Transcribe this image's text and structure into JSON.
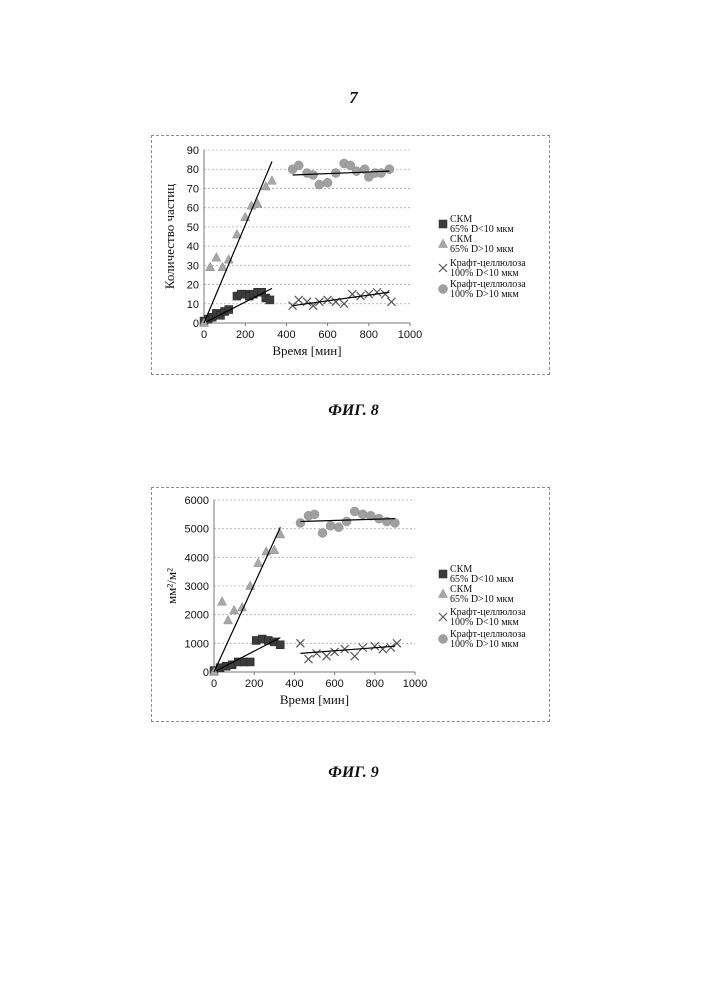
{
  "page": {
    "number": "7"
  },
  "figures": [
    {
      "caption": "ФИГ. 8"
    },
    {
      "caption": "ФИГ. 9"
    }
  ],
  "colors": {
    "series1": "#3c3c3c",
    "series2": "#a8a8a8",
    "series3": "#555555",
    "series4": "#a0a0a0",
    "trend": "#000000",
    "grid": "#a8a8a8"
  },
  "chart_data": [
    {
      "type": "scatter",
      "xlabel": "Время [мин]",
      "ylabel": "Количество частиц",
      "xlim": [
        0,
        1000
      ],
      "ylim": [
        0,
        90
      ],
      "xticks": [
        0,
        200,
        400,
        600,
        800,
        1000
      ],
      "yticks": [
        0,
        10,
        20,
        30,
        40,
        50,
        60,
        70,
        80,
        90
      ],
      "grid": "horizontal dashed",
      "legend_position": "right",
      "series": [
        {
          "name": "СКМ 65% D<10 мкм",
          "marker": "square",
          "points": [
            [
              0,
              1
            ],
            [
              20,
              2
            ],
            [
              40,
              3
            ],
            [
              60,
              5
            ],
            [
              80,
              4
            ],
            [
              100,
              6
            ],
            [
              120,
              7
            ],
            [
              160,
              14
            ],
            [
              180,
              15
            ],
            [
              200,
              15
            ],
            [
              220,
              14
            ],
            [
              240,
              15
            ],
            [
              260,
              16
            ],
            [
              280,
              16
            ],
            [
              300,
              13
            ],
            [
              320,
              12
            ]
          ],
          "trend": [
            [
              0,
              0
            ],
            [
              330,
              18
            ]
          ]
        },
        {
          "name": "СКМ 65% D>10 мкм",
          "marker": "triangle",
          "points": [
            [
              0,
              0
            ],
            [
              30,
              29
            ],
            [
              60,
              34
            ],
            [
              90,
              29
            ],
            [
              120,
              33
            ],
            [
              160,
              46
            ],
            [
              200,
              55
            ],
            [
              230,
              61
            ],
            [
              260,
              62
            ],
            [
              300,
              71
            ],
            [
              330,
              74
            ]
          ],
          "trend": [
            [
              0,
              0
            ],
            [
              330,
              84
            ]
          ]
        },
        {
          "name": "Крафт-целлюлоза 100% D<10 мкм",
          "marker": "x",
          "points": [
            [
              430,
              9
            ],
            [
              460,
              12
            ],
            [
              500,
              11
            ],
            [
              530,
              9
            ],
            [
              560,
              11
            ],
            [
              600,
              12
            ],
            [
              640,
              11
            ],
            [
              680,
              10
            ],
            [
              720,
              15
            ],
            [
              760,
              14
            ],
            [
              800,
              15
            ],
            [
              840,
              16
            ],
            [
              880,
              15
            ],
            [
              910,
              11
            ]
          ],
          "trend": [
            [
              430,
              9
            ],
            [
              900,
              16
            ]
          ]
        },
        {
          "name": "Крафт-целлюлоза 100% D>10 мкм",
          "marker": "circle",
          "points": [
            [
              430,
              80
            ],
            [
              460,
              82
            ],
            [
              500,
              78
            ],
            [
              530,
              77
            ],
            [
              560,
              72
            ],
            [
              600,
              73
            ],
            [
              640,
              78
            ],
            [
              680,
              83
            ],
            [
              710,
              82
            ],
            [
              740,
              79
            ],
            [
              780,
              80
            ],
            [
              800,
              76
            ],
            [
              830,
              78
            ],
            [
              860,
              78
            ],
            [
              900,
              80
            ]
          ],
          "trend": [
            [
              430,
              77
            ],
            [
              900,
              79
            ]
          ]
        }
      ]
    },
    {
      "type": "scatter",
      "xlabel": "Время [мин]",
      "ylabel": "мм²/м²",
      "xlim": [
        0,
        1000
      ],
      "ylim": [
        0,
        6000
      ],
      "xticks": [
        0,
        200,
        400,
        600,
        800,
        1000
      ],
      "yticks": [
        0,
        1000,
        2000,
        3000,
        4000,
        5000,
        6000
      ],
      "grid": "horizontal dashed",
      "legend_position": "right",
      "series": [
        {
          "name": "СКМ 65% D<10 мкм",
          "marker": "square",
          "points": [
            [
              0,
              50
            ],
            [
              30,
              150
            ],
            [
              60,
              200
            ],
            [
              90,
              250
            ],
            [
              120,
              350
            ],
            [
              150,
              350
            ],
            [
              180,
              350
            ],
            [
              210,
              1100
            ],
            [
              240,
              1150
            ],
            [
              270,
              1100
            ],
            [
              300,
              1050
            ],
            [
              330,
              950
            ]
          ],
          "trend": [
            [
              0,
              0
            ],
            [
              330,
              1200
            ]
          ]
        },
        {
          "name": "СКМ 65% D>10 мкм",
          "marker": "triangle",
          "points": [
            [
              0,
              0
            ],
            [
              40,
              2450
            ],
            [
              70,
              1800
            ],
            [
              100,
              2150
            ],
            [
              140,
              2250
            ],
            [
              180,
              3000
            ],
            [
              220,
              3800
            ],
            [
              260,
              4200
            ],
            [
              300,
              4250
            ],
            [
              330,
              4800
            ]
          ],
          "trend": [
            [
              0,
              0
            ],
            [
              330,
              5050
            ]
          ]
        },
        {
          "name": "Крафт-целлюлоза 100% D<10 мкм",
          "marker": "x",
          "points": [
            [
              430,
              1000
            ],
            [
              470,
              450
            ],
            [
              510,
              650
            ],
            [
              560,
              550
            ],
            [
              600,
              700
            ],
            [
              650,
              800
            ],
            [
              700,
              550
            ],
            [
              740,
              850
            ],
            [
              800,
              900
            ],
            [
              840,
              800
            ],
            [
              880,
              850
            ],
            [
              910,
              1000
            ]
          ],
          "trend": [
            [
              430,
              650
            ],
            [
              900,
              900
            ]
          ]
        },
        {
          "name": "Крафт-целлюлоза 100% D>10 мкм",
          "marker": "circle",
          "points": [
            [
              430,
              5200
            ],
            [
              470,
              5450
            ],
            [
              500,
              5500
            ],
            [
              540,
              4850
            ],
            [
              580,
              5100
            ],
            [
              620,
              5050
            ],
            [
              660,
              5250
            ],
            [
              700,
              5600
            ],
            [
              740,
              5500
            ],
            [
              780,
              5450
            ],
            [
              820,
              5350
            ],
            [
              860,
              5250
            ],
            [
              900,
              5200
            ]
          ],
          "trend": [
            [
              430,
              5250
            ],
            [
              900,
              5350
            ]
          ]
        }
      ]
    }
  ]
}
